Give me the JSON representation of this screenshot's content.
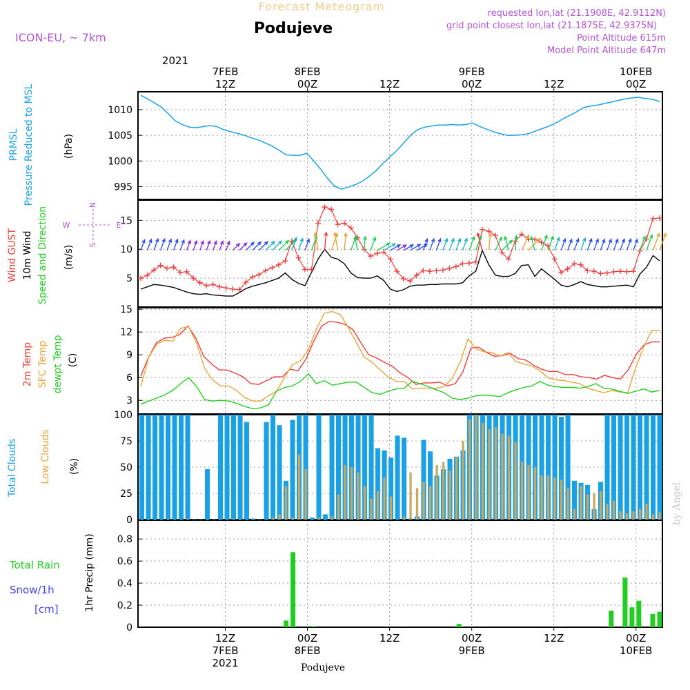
{
  "header": {
    "title": "Forecast Meteogram",
    "location": "Podujeve",
    "model": "ICON-EU, ~ 7km",
    "requested": "requested lon,lat (21.1908E, 42.9112N)",
    "grid_point": "grid point closest lon,lat (21.1875E, 42.9375N)",
    "point_altitude": "Point Altitude 615m",
    "model_altitude": "Model Point Altitude 647m"
  },
  "time_axis": {
    "top_year": "2021",
    "labels": [
      {
        "t": 12,
        "line1": "7FEB",
        "line2": "12Z"
      },
      {
        "t": 24,
        "line1": "8FEB",
        "line2": "00Z"
      },
      {
        "t": 36,
        "line1": "",
        "line2": "12Z"
      },
      {
        "t": 48,
        "line1": "9FEB",
        "line2": "00Z"
      },
      {
        "t": 60,
        "line1": "",
        "line2": "12Z"
      },
      {
        "t": 72,
        "line1": "10FEB",
        "line2": "00Z"
      }
    ],
    "bottom_labels": [
      {
        "t": 12,
        "hour": "12Z",
        "date": "7FEB",
        "year": "2021"
      },
      {
        "t": 24,
        "hour": "00Z",
        "date": "8FEB",
        "year": ""
      },
      {
        "t": 36,
        "hour": "12Z",
        "date": "",
        "year": ""
      },
      {
        "t": 48,
        "hour": "00Z",
        "date": "9FEB",
        "year": ""
      },
      {
        "t": 60,
        "hour": "12Z",
        "date": "",
        "year": ""
      },
      {
        "t": 72,
        "hour": "00Z",
        "date": "10FEB",
        "year": ""
      }
    ],
    "footer_name": "Podujeve"
  },
  "watermark": "by Angel",
  "colors": {
    "pressure": "#1aa0e6",
    "gust": "#ef3b3b",
    "wind": "#000000",
    "temp": "#ef3b3b",
    "sfc": "#e8a43a",
    "dewpt": "#22cc22",
    "total_cloud": "#1aa0e6",
    "low_cloud": "#c8a862",
    "rain": "#22cc22",
    "snow": "#4040ee",
    "header_orange": "#f2cc8f",
    "header_purple": "#b255d8"
  },
  "chart_data": [
    {
      "type": "line",
      "panel": "pressure",
      "ylabel_lines": [
        "PRMSL",
        "Pressure Reduced to MSL"
      ],
      "unit": "(hPa)",
      "ylim": [
        992.5,
        1013.5
      ],
      "yticks": [
        995,
        1000,
        1005,
        1010
      ],
      "x_hours": [
        0,
        1,
        2,
        3,
        4,
        5,
        6,
        7,
        8,
        9,
        10,
        11,
        12,
        13,
        14,
        15,
        16,
        17,
        18,
        19,
        20,
        21,
        22,
        23,
        24,
        25,
        26,
        27,
        28,
        29,
        30,
        31,
        32,
        33,
        34,
        35,
        36,
        37,
        38,
        39,
        40,
        41,
        42,
        43,
        44,
        45,
        46,
        47,
        48,
        49,
        50,
        51,
        52,
        53,
        54,
        55,
        56,
        57,
        58,
        59,
        60,
        61,
        62,
        63,
        64,
        65,
        66,
        67,
        68,
        69,
        70,
        71,
        72,
        73,
        74,
        75,
        76,
        77,
        78,
        79,
        80
      ],
      "series": [
        {
          "name": "PRMSL",
          "values": [
            1012.8,
            1012.1,
            1011.3,
            1010.5,
            1009.2,
            1007.8,
            1007.1,
            1006.6,
            1006.5,
            1006.7,
            1006.9,
            1006.7,
            1006.1,
            1005.7,
            1005.4,
            1005.0,
            1004.5,
            1004.1,
            1003.5,
            1002.9,
            1002.1,
            1001.2,
            1001.1,
            1001.1,
            1001.5,
            1000.0,
            998.4,
            996.6,
            995.1,
            994.5,
            994.9,
            995.4,
            996.0,
            997.0,
            998.1,
            999.5,
            1000.8,
            1002.0,
            1003.5,
            1005.0,
            1006.1,
            1006.6,
            1006.8,
            1007.0,
            1007.0,
            1007.1,
            1007.0,
            1007.1,
            1007.4,
            1006.7,
            1006.2,
            1005.7,
            1005.3,
            1005.0,
            1005.0,
            1005.1,
            1005.3,
            1005.8,
            1006.3,
            1006.8,
            1007.4,
            1008.2,
            1008.9,
            1009.6,
            1010.4,
            1010.7,
            1010.9,
            1011.2,
            1011.5,
            1011.8,
            1012.1,
            1012.3,
            1012.4,
            1012.2,
            1012.0,
            1011.6
          ]
        }
      ]
    },
    {
      "type": "line",
      "panel": "wind",
      "ylabel_lines": [
        "Wind GUST",
        "10m Wind",
        "Speed and Direction"
      ],
      "unit": "(m/s)",
      "compass": {
        "north": "N",
        "south": "S",
        "west": "W",
        "east": "E"
      },
      "ylim": [
        0,
        18.5
      ],
      "yticks": [
        5,
        10,
        15
      ],
      "series": [
        {
          "name": "Wind GUST",
          "values": [
            5.0,
            5.5,
            6.4,
            7.2,
            6.7,
            6.9,
            6.0,
            6.1,
            5.0,
            4.2,
            3.7,
            3.9,
            3.5,
            3.3,
            3.1,
            3.0,
            4.3,
            5.2,
            5.6,
            6.3,
            6.8,
            7.3,
            8.0,
            11.4,
            8.5,
            6.5,
            6.5,
            14.5,
            17.3,
            16.9,
            14.3,
            14.5,
            13.7,
            12.0,
            10.0,
            8.8,
            9.3,
            9.5,
            8.3,
            6.2,
            4.9,
            4.5,
            5.5,
            6.3,
            6.2,
            6.3,
            6.4,
            6.7,
            7.0,
            7.5,
            7.6,
            7.8,
            13.4,
            13.1,
            12.4,
            9.4,
            8.3,
            11.4,
            12.6,
            11.7,
            11.7,
            11.2,
            10.6,
            8.3,
            6.0,
            6.6,
            7.5,
            7.3,
            6.3,
            6.2,
            5.8,
            5.9,
            6.1,
            6.2,
            6.1,
            6.2,
            9.7,
            11.8,
            15.3,
            15.4
          ]
        },
        {
          "name": "10m Wind",
          "values": [
            3.1,
            3.5,
            3.9,
            3.8,
            3.6,
            3.4,
            3.0,
            2.6,
            2.3,
            2.2,
            2.3,
            2.1,
            2.0,
            1.9,
            1.9,
            2.5,
            3.2,
            3.6,
            3.9,
            4.2,
            4.6,
            5.0,
            5.9,
            4.8,
            4.1,
            3.7,
            6.0,
            8.3,
            10.0,
            8.6,
            8.3,
            7.5,
            5.9,
            5.1,
            5.0,
            5.0,
            5.4,
            4.6,
            3.1,
            2.7,
            3.0,
            3.6,
            3.8,
            3.8,
            3.9,
            3.9,
            4.0,
            4.0,
            4.0,
            4.2,
            5.4,
            6.2,
            9.8,
            7.3,
            5.5,
            5.3,
            5.3,
            5.8,
            7.2,
            7.3,
            5.3,
            6.6,
            5.7,
            4.8,
            3.8,
            3.5,
            3.9,
            4.4,
            3.9,
            3.7,
            3.5,
            3.5,
            3.6,
            3.7,
            3.8,
            3.5,
            5.7,
            6.9,
            8.9,
            8.0
          ]
        }
      ]
    },
    {
      "type": "line",
      "panel": "temperature",
      "ylabel_lines": [
        "2m Temp",
        "SFC Temp",
        "dewpt Temp"
      ],
      "unit": "(C)",
      "ylim": [
        1.2,
        15.2
      ],
      "yticks": [
        3,
        6,
        9,
        12,
        15
      ],
      "series": [
        {
          "name": "2m Temp",
          "values": [
            6.2,
            8.7,
            10.6,
            11.2,
            11.3,
            11.7,
            12.8,
            11.2,
            8.8,
            7.8,
            7.0,
            7.0,
            6.6,
            6.1,
            5.2,
            5.1,
            5.6,
            6.1,
            6.1,
            7.1,
            6.9,
            8.4,
            10.8,
            12.8,
            13.4,
            13.3,
            13.0,
            12.3,
            10.6,
            9.0,
            8.6,
            8.0,
            7.5,
            6.6,
            6.0,
            5.1,
            5.3,
            5.3,
            5.4,
            4.9,
            5.2,
            6.8,
            9.9,
            10.0,
            9.3,
            8.8,
            8.9,
            9.2,
            8.5,
            8.3,
            7.6,
            7.1,
            6.8,
            6.8,
            6.4,
            6.4,
            6.1,
            6.0,
            5.8,
            6.3,
            6.0,
            5.8,
            7.0,
            9.0,
            10.3,
            10.7,
            10.7
          ]
        },
        {
          "name": "SFC Temp",
          "values": [
            4.8,
            8.7,
            10.4,
            10.9,
            10.8,
            12.5,
            12.7,
            10.5,
            7.2,
            5.7,
            4.9,
            4.9,
            4.3,
            3.4,
            2.9,
            2.9,
            3.6,
            4.2,
            6.0,
            7.7,
            8.2,
            9.7,
            12.4,
            14.5,
            14.7,
            14.3,
            12.6,
            10.6,
            8.7,
            8.0,
            7.0,
            6.1,
            5.5,
            5.5,
            4.5,
            4.6,
            4.6,
            4.6,
            4.8,
            5.9,
            8.0,
            11.1,
            9.8,
            9.4,
            9.3,
            8.8,
            9.3,
            8.1,
            7.8,
            7.5,
            6.9,
            6.0,
            5.7,
            5.6,
            5.4,
            5.2,
            4.6,
            4.3,
            4.0,
            4.3,
            4.1,
            4.0,
            7.3,
            10.0,
            12.2,
            12.2
          ]
        },
        {
          "name": "dewpt Temp",
          "values": [
            2.5,
            2.9,
            3.3,
            3.7,
            4.3,
            5.2,
            6.0,
            4.8,
            3.1,
            2.9,
            3.0,
            2.9,
            2.6,
            2.2,
            1.9,
            2.0,
            2.4,
            4.2,
            4.7,
            4.9,
            5.5,
            6.5,
            5.2,
            5.6,
            5.0,
            5.2,
            5.4,
            5.4,
            4.7,
            4.0,
            3.8,
            4.2,
            4.5,
            4.6,
            5.5,
            5.2,
            4.8,
            4.4,
            4.0,
            3.3,
            3.1,
            3.3,
            3.6,
            3.7,
            3.6,
            3.5,
            4.0,
            4.4,
            4.7,
            4.9,
            5.5,
            5.0,
            4.8,
            4.7,
            4.7,
            4.6,
            4.8,
            5.2,
            4.6,
            4.5,
            4.2,
            3.9,
            4.2,
            4.5,
            4.1,
            4.3
          ]
        }
      ]
    },
    {
      "type": "bar",
      "panel": "clouds",
      "ylabel_lines": [
        "Total Clouds",
        "Low Clouds"
      ],
      "unit": "(%)",
      "ylim": [
        0,
        100
      ],
      "yticks": [
        0,
        25,
        50,
        75,
        100
      ],
      "series": [
        {
          "name": "Total Clouds",
          "values": [
            100,
            100,
            100,
            100,
            100,
            100,
            100,
            100,
            0,
            0,
            48,
            0,
            100,
            100,
            100,
            100,
            93,
            1,
            0,
            93,
            100,
            90,
            37,
            95,
            100,
            100,
            2,
            100,
            5,
            100,
            100,
            100,
            100,
            100,
            100,
            100,
            68,
            66,
            59,
            80,
            78,
            1,
            3,
            76,
            65,
            42,
            48,
            58,
            60,
            66,
            100,
            100,
            100,
            100,
            100,
            100,
            100,
            100,
            100,
            100,
            100,
            100,
            100,
            100,
            98,
            100,
            37,
            35,
            33,
            10,
            36,
            100,
            100,
            100,
            100,
            100,
            100,
            100,
            100,
            100
          ]
        },
        {
          "name": "Low Clouds",
          "values": [
            0,
            0,
            0,
            0,
            1,
            0,
            0,
            1,
            0,
            0,
            0,
            0,
            0,
            0,
            1,
            0,
            0,
            0,
            0,
            0,
            2,
            5,
            32,
            2,
            62,
            48,
            0,
            2,
            0,
            3,
            24,
            52,
            50,
            45,
            32,
            20,
            27,
            40,
            22,
            0,
            3,
            45,
            30,
            36,
            32,
            52,
            55,
            47,
            60,
            75,
            96,
            100,
            92,
            86,
            88,
            82,
            80,
            74,
            55,
            52,
            50,
            42,
            42,
            40,
            38,
            30,
            10,
            32,
            24,
            25,
            27,
            15,
            18,
            8,
            6,
            8,
            10,
            15,
            5,
            7
          ]
        }
      ]
    },
    {
      "type": "bar",
      "panel": "precip",
      "ylabel_lines": [
        "Total  Rain",
        "Snow/1h",
        "[cm]"
      ],
      "unit": "1hr Precip (mm)",
      "ylim": [
        0,
        0.97
      ],
      "yticks": [
        0,
        0.2,
        0.4,
        0.6,
        0.8
      ],
      "ytick_labels": [
        "0",
        "0.2",
        "0.4",
        "0.6",
        "0.8"
      ],
      "series": [
        {
          "name": "Total Rain",
          "points": [
            {
              "t": 21,
              "v": 0.06
            },
            {
              "t": 22,
              "v": 0.68
            },
            {
              "t": 25,
              "v": 0.01
            },
            {
              "t": 46,
              "v": 0.03
            },
            {
              "t": 68,
              "v": 0.15
            },
            {
              "t": 70,
              "v": 0.45
            },
            {
              "t": 71,
              "v": 0.18
            },
            {
              "t": 72,
              "v": 0.24
            },
            {
              "t": 74,
              "v": 0.12
            },
            {
              "t": 75,
              "v": 0.14
            }
          ]
        },
        {
          "name": "Snow/1h",
          "points": []
        }
      ]
    }
  ]
}
